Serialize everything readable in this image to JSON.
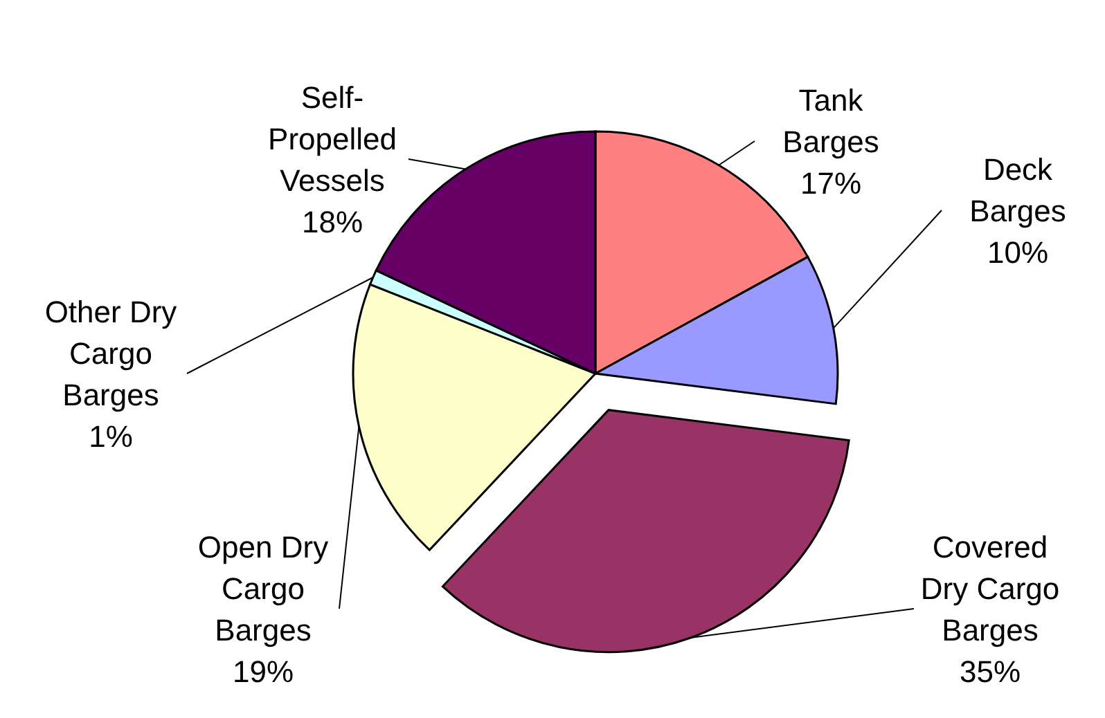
{
  "chart_data": {
    "type": "pie",
    "categories": [
      "Tank Barges",
      "Deck Barges",
      "Covered Dry Cargo Barges",
      "Open Dry Cargo Barges",
      "Other Dry Cargo Barges",
      "Self-Propelled Vessels"
    ],
    "values": [
      17,
      10,
      35,
      19,
      1,
      18
    ],
    "colors": [
      "#ff8080",
      "#9999ff",
      "#993366",
      "#ffffcc",
      "#ccffff",
      "#660066"
    ],
    "value_labels": [
      "17%",
      "10%",
      "35%",
      "19%",
      "1%",
      "18%"
    ]
  }
}
